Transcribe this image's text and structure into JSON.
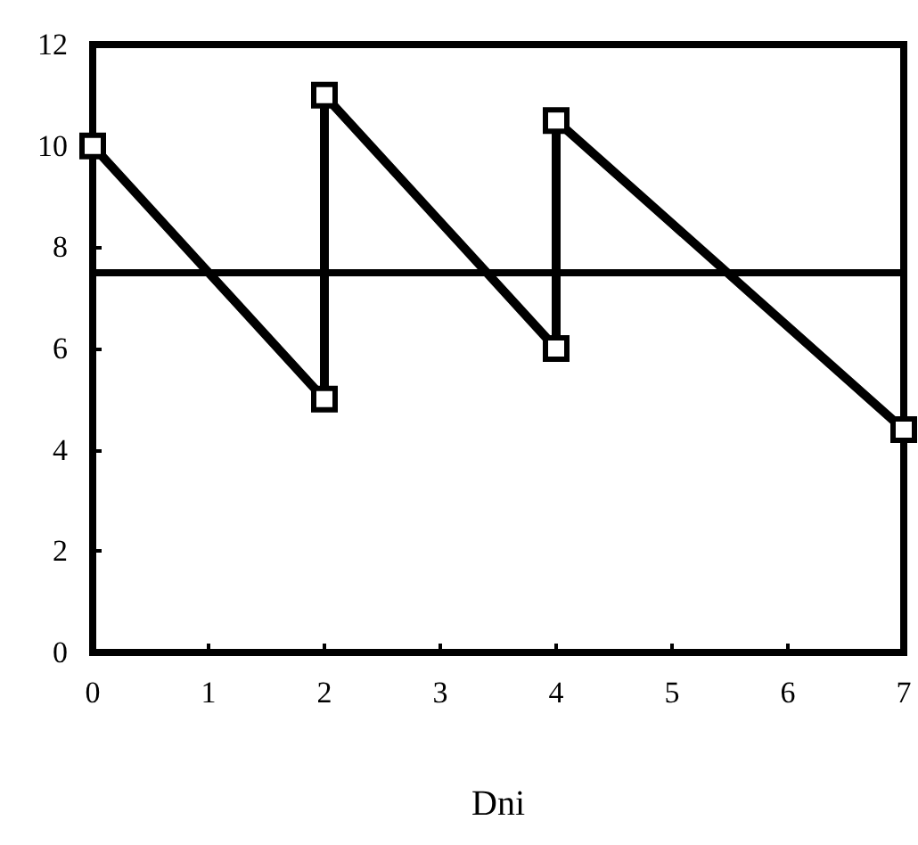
{
  "chart_data": {
    "type": "line",
    "xlabel": "Dni",
    "series": [
      {
        "color": "#000000",
        "x": [
          0,
          2,
          2,
          4,
          4,
          7
        ],
        "values": [
          10,
          5,
          11,
          6,
          10.5,
          4.4
        ]
      }
    ],
    "xlim": [
      0,
      7
    ],
    "xticks": [
      0,
      1,
      2,
      3,
      4,
      5,
      6,
      7
    ],
    "ylim": [
      0,
      12
    ],
    "yticks": [
      0,
      2,
      4,
      6,
      8,
      10,
      12
    ],
    "ref_lines": [
      {
        "axis": "y",
        "value": 7.5,
        "color": "#000000"
      }
    ],
    "grid": false,
    "marker": "square",
    "line_style": "solid"
  }
}
